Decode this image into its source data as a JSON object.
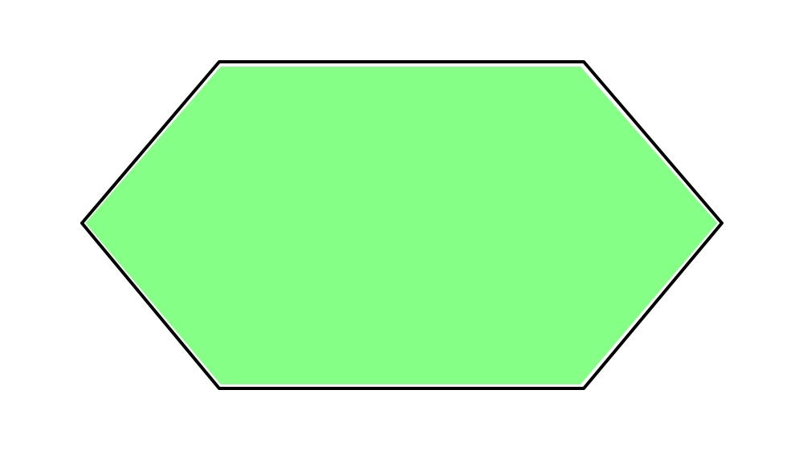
{
  "diagram": {
    "shape": "hexagon",
    "colors": {
      "background": "#ffffff",
      "fill": "#86ff86",
      "outline": "#000000",
      "inner_gap": "#ffffff"
    }
  }
}
